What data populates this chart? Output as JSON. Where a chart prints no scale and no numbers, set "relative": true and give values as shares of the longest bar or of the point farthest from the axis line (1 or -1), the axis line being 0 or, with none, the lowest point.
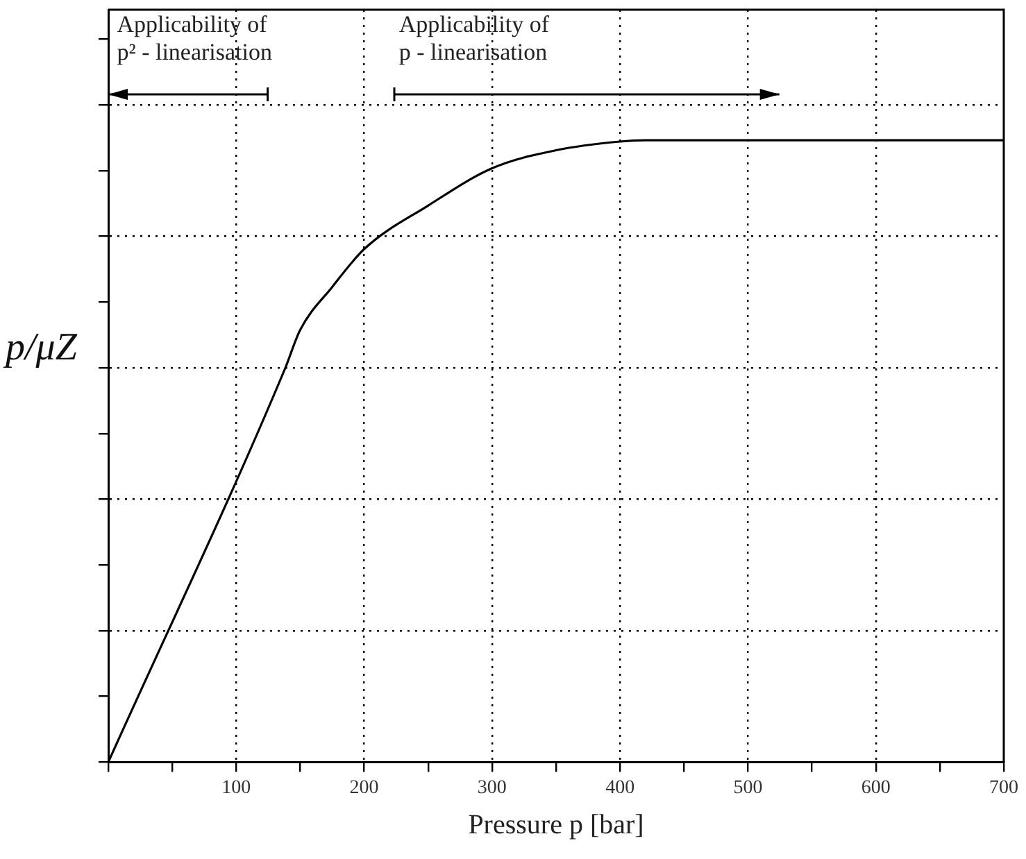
{
  "chart_data": {
    "type": "line",
    "relative": true,
    "xlabel": "Pressure p [bar]",
    "ylabel": "p/μZ",
    "x": [
      0,
      138,
      150,
      175,
      200,
      250,
      300,
      350,
      400,
      420,
      700
    ],
    "series": [
      {
        "color": "#000000",
        "values": [
          0,
          0.632,
          0.695,
          0.764,
          0.825,
          0.895,
          0.955,
          0.984,
          0.998,
          1,
          1
        ]
      }
    ],
    "xlim": [
      0,
      700
    ],
    "xticks": [
      {
        "value": 0,
        "label": null
      },
      {
        "value": 50,
        "label": null
      },
      100,
      {
        "value": 150,
        "label": null
      },
      200,
      {
        "value": 250,
        "label": null
      },
      300,
      {
        "value": 350,
        "label": null
      },
      400,
      {
        "value": 450,
        "label": null
      },
      500,
      {
        "value": 550,
        "label": null
      },
      600,
      {
        "value": 650,
        "label": null
      },
      700
    ],
    "annotations": [
      "Applicability of\np² - linearisation",
      "Applicability of\np - linearisation"
    ],
    "grid": true,
    "legend": false,
    "tick_labels": "x",
    "marker": "none",
    "line_style": "solid"
  }
}
